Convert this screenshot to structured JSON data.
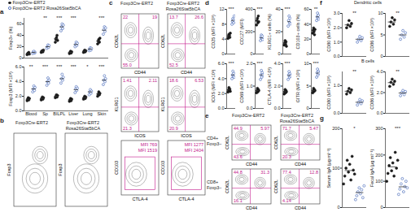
{
  "groups": [
    {
      "name": "Foxp3Cre-ERT2",
      "color": "#1a1a1a",
      "marker": "filled circle"
    },
    {
      "name": "Foxp3Cre-ERT2 Rosa26Stat5bCA",
      "color": "#3b5fb5",
      "marker": "open circle"
    }
  ],
  "chart_data": [
    {
      "panel": "a",
      "type": "scatter",
      "y_label": "Foxp3+ (%)",
      "tick_labels": "y",
      "categories": [
        "Blood",
        "Sp",
        "BILPL",
        "Liver",
        "Lung",
        "Skin"
      ],
      "ylim": [
        0,
        70
      ],
      "yticks": [
        0,
        20,
        40,
        60
      ],
      "series": [
        {
          "values": [
            [
              6,
              8,
              9,
              10,
              7
            ],
            [
              10,
              12,
              13,
              11,
              14
            ],
            [
              28,
              33,
              36,
              40,
              31
            ],
            [
              8,
              10,
              12,
              9,
              11
            ],
            [
              10,
              12,
              14,
              11,
              13
            ],
            [
              25,
              30,
              33,
              28,
              35
            ]
          ],
          "means": [
            8,
            12,
            34,
            10,
            12,
            30
          ]
        },
        {
          "values": [
            [
              8,
              11,
              12,
              9,
              10
            ],
            [
              17,
              20,
              23,
              19,
              22
            ],
            [
              48,
              55,
              60,
              52,
              58
            ],
            [
              20,
              24,
              28,
              22,
              26
            ],
            [
              13,
              16,
              18,
              14,
              17
            ],
            [
              42,
              50,
              55,
              47,
              53
            ]
          ],
          "means": [
            10,
            20,
            55,
            24,
            16,
            49
          ]
        }
      ],
      "significance": [
        null,
        "**",
        "***",
        "***",
        null,
        "***"
      ]
    },
    {
      "panel": "a",
      "type": "scatter",
      "y_label": "Foxp3 (MFI ×10³)",
      "categories": [
        "Blood",
        "Sp",
        "BILPL",
        "Liver",
        "Lung",
        "Skin"
      ],
      "ylim": [
        0,
        6
      ],
      "yticks": [
        0,
        2,
        4,
        6
      ],
      "series": [
        {
          "values": [
            [
              1.4,
              1.6,
              1.8,
              1.5,
              1.7
            ],
            [
              1.5,
              1.7,
              1.9,
              1.6,
              1.8
            ],
            [
              1.8,
              2.0,
              2.2,
              1.9,
              2.1
            ],
            [
              1.3,
              1.5,
              1.7,
              1.4,
              1.6
            ],
            [
              1.6,
              1.8,
              2.0,
              1.7,
              1.9
            ],
            [
              2.0,
              2.3,
              2.6,
              2.2,
              2.4
            ]
          ],
          "means": [
            1.6,
            1.7,
            2.0,
            1.5,
            1.8,
            2.3
          ]
        },
        {
          "values": [
            [
              2.6,
              3.0,
              3.4,
              2.8,
              3.2
            ],
            [
              3.5,
              4.0,
              4.5,
              3.8,
              4.2
            ],
            [
              3.8,
              4.4,
              5.0,
              4.2,
              4.6
            ],
            [
              2.5,
              3.0,
              3.3,
              2.8,
              3.1
            ],
            [
              2.2,
              2.6,
              2.9,
              2.4,
              2.7
            ],
            [
              3.6,
              4.2,
              4.8,
              4.0,
              4.4
            ]
          ],
          "means": [
            3.0,
            4.0,
            4.4,
            2.9,
            2.6,
            4.2
          ]
        }
      ],
      "significance": [
        "**",
        "***",
        "***",
        "***",
        "*",
        "***"
      ]
    },
    {
      "panel": "b",
      "type": "flow",
      "rows": [
        {
          "y_label": "Foxp3",
          "gates": [
            [],
            []
          ]
        }
      ]
    },
    {
      "panel": "c",
      "type": "flow",
      "rows": [
        {
          "x_label": "CD44",
          "y_label": "CD62L",
          "gates": [
            [
              "22",
              "19",
              "55.0"
            ],
            [
              "13.7",
              "26.6",
              "52.5"
            ]
          ]
        },
        {
          "x_label": "ICOS",
          "y_label": "KLRG1",
          "gates": [
            [
              "1.41",
              "2.11",
              "21.3"
            ],
            [
              "18.6",
              "6.53",
              "20.9"
            ]
          ]
        },
        {
          "x_label": "CTLA-4",
          "y_label": "CD103",
          "gates": [
            [
              "MFI 769",
              "MFI 1519"
            ],
            [
              "MFI 1277",
              "MFI 2404"
            ]
          ]
        }
      ]
    },
    {
      "panel": "d",
      "type": "scatter",
      "y_label": "CD25 (MFI ×10³)",
      "ylim": [
        0,
        12
      ],
      "yticks": [
        0,
        4,
        8,
        12
      ],
      "series": [
        {
          "values": [
            [
              4.2,
              4.8,
              5.3,
              5.0,
              4.5,
              5.6
            ]
          ],
          "means": [
            4.9
          ]
        },
        {
          "values": [
            [
              8.0,
              8.8,
              9.5,
              9.1,
              8.4,
              10.2
            ]
          ],
          "means": [
            9.0
          ]
        }
      ],
      "significance": [
        "***"
      ]
    },
    {
      "panel": "d",
      "type": "scatter",
      "y_label": "CD127 (MFI)",
      "ylim": [
        0,
        400
      ],
      "yticks": [
        0,
        200,
        400
      ],
      "series": [
        {
          "values": [
            [
              260,
              300,
              320,
              280,
              340,
              290
            ]
          ],
          "means": [
            298
          ]
        },
        {
          "values": [
            [
              120,
              150,
              170,
              140,
              160,
              130
            ]
          ],
          "means": [
            145
          ]
        }
      ],
      "significance": [
        "***"
      ]
    },
    {
      "panel": "d",
      "type": "scatter",
      "y_label": "KLRG1+ cells (%)",
      "ylim": [
        0,
        40
      ],
      "yticks": [
        0,
        20,
        40
      ],
      "series": [
        {
          "values": [
            [
              8,
              10,
              12,
              9,
              11,
              7
            ]
          ],
          "means": [
            9.5
          ]
        },
        {
          "values": [
            [
              25,
              30,
              34,
              28,
              32,
              27
            ]
          ],
          "means": [
            29
          ]
        }
      ],
      "significance": [
        "***"
      ]
    },
    {
      "panel": "d",
      "type": "scatter",
      "y_label": "CD103+ cells (%)",
      "ylim": [
        0,
        60
      ],
      "yticks": [
        0,
        20,
        40,
        60
      ],
      "series": [
        {
          "values": [
            [
              28,
              32,
              35,
              30,
              26,
              33
            ]
          ],
          "means": [
            31
          ]
        },
        {
          "values": [
            [
              45,
              50,
              55,
              48,
              52,
              47
            ]
          ],
          "means": [
            50
          ]
        }
      ],
      "significance": [
        "**"
      ]
    },
    {
      "panel": "d",
      "type": "scatter",
      "y_label": "ICOS (MFI ×10³)",
      "ylim": [
        0,
        6
      ],
      "yticks": [
        0,
        2,
        4,
        6
      ],
      "series": [
        {
          "values": [
            [
              2.2,
              2.5,
              2.8,
              2.4,
              2.6,
              2.3
            ]
          ],
          "means": [
            2.5
          ]
        },
        {
          "values": [
            [
              4.0,
              4.5,
              5.0,
              4.3,
              4.7,
              4.2
            ]
          ],
          "means": [
            4.5
          ]
        }
      ],
      "significance": [
        "***"
      ]
    },
    {
      "panel": "d",
      "type": "scatter",
      "y_label": "CD69 (MFI ×10³)",
      "ylim": [
        0,
        2
      ],
      "yticks": [
        0,
        1,
        2
      ],
      "series": [
        {
          "values": [
            [
              0.7,
              0.8,
              0.9,
              0.75,
              0.85,
              0.8
            ]
          ],
          "means": [
            0.8
          ]
        },
        {
          "values": [
            [
              1.3,
              1.5,
              1.7,
              1.4,
              1.6,
              1.5
            ]
          ],
          "means": [
            1.5
          ]
        }
      ],
      "significance": [
        "***"
      ]
    },
    {
      "panel": "d",
      "type": "scatter",
      "y_label": "CTLA-4 (MFI ×10³)",
      "ylim": [
        0,
        4
      ],
      "yticks": [
        0,
        2,
        4
      ],
      "series": [
        {
          "values": [
            [
              1.3,
              1.5,
              1.7,
              1.4,
              1.6,
              1.5
            ]
          ],
          "means": [
            1.5
          ]
        },
        {
          "values": [
            [
              2.6,
              3.0,
              3.3,
              2.8,
              3.1,
              2.9
            ]
          ],
          "means": [
            2.95
          ]
        }
      ],
      "significance": [
        "***"
      ]
    },
    {
      "panel": "d",
      "type": "scatter",
      "y_label": "GITR (MFI ×10³)",
      "ylim": [
        0,
        10
      ],
      "yticks": [
        0,
        5,
        10
      ],
      "series": [
        {
          "values": [
            [
              3.5,
              4.0,
              4.5,
              3.8,
              4.2,
              4.0
            ]
          ],
          "means": [
            4.0
          ]
        },
        {
          "values": [
            [
              7.0,
              8.0,
              8.8,
              7.5,
              8.3,
              7.9
            ]
          ],
          "means": [
            7.9
          ]
        }
      ],
      "significance": [
        "***"
      ]
    },
    {
      "panel": "e",
      "type": "flow",
      "rows": [
        {
          "title": "CD4+ Foxp3−",
          "x_label": "CD44",
          "y_label": "CD62L",
          "gates": [
            [
              "44.9",
              "5.97",
              "43.6"
            ],
            [
              "71.7",
              "5.47",
              "20.3"
            ]
          ]
        },
        {
          "title": "CD8+ Foxp3−",
          "x_label": "CD44",
          "y_label": "CD62L",
          "gates": [
            [
              "44.8",
              "31.3",
              "16.1"
            ],
            [
              "77.4",
              "12.8",
              "4.14"
            ]
          ]
        }
      ]
    },
    {
      "panel": "f",
      "type": "scatter",
      "title": "Dendritic cells",
      "y_label": "CD80 (MFI ×10³)",
      "ylim": [
        0,
        3
      ],
      "yticks": [
        0,
        1,
        2,
        3
      ],
      "series": [
        {
          "values": [
            [
              2.0,
              2.2,
              2.5,
              2.1,
              2.3
            ]
          ],
          "means": [
            2.2
          ]
        },
        {
          "values": [
            [
              1.0,
              1.2,
              1.4,
              1.1,
              1.3
            ]
          ],
          "means": [
            1.2
          ]
        }
      ],
      "significance": [
        "**"
      ]
    },
    {
      "panel": "f",
      "type": "scatter",
      "y_label": "CD86 (MFI ×10³)",
      "ylim": [
        0,
        10
      ],
      "yticks": [
        0,
        5,
        10
      ],
      "series": [
        {
          "values": [
            [
              7,
              8,
              9,
              7.5,
              8.5
            ]
          ],
          "means": [
            8
          ]
        },
        {
          "values": [
            [
              4,
              5,
              6,
              4.5,
              5.5
            ]
          ],
          "means": [
            5
          ]
        }
      ],
      "significance": [
        "**"
      ]
    },
    {
      "panel": "f",
      "type": "scatter",
      "title": "B cells",
      "y_label": "CD80 (MFI ×10³)",
      "ylim": [
        0,
        1.5
      ],
      "yticks": [
        0,
        1
      ],
      "series": [
        {
          "values": [
            [
              0.7,
              0.8,
              0.9,
              0.75,
              0.85
            ]
          ],
          "means": [
            0.8
          ]
        },
        {
          "values": [
            [
              0.3,
              0.4,
              0.5,
              0.35,
              0.45
            ]
          ],
          "means": [
            0.4
          ]
        }
      ],
      "significance": [
        "**"
      ]
    },
    {
      "panel": "f",
      "type": "scatter",
      "y_label": "CD86 (MFI ×10³)",
      "ylim": [
        0,
        4
      ],
      "yticks": [
        0,
        2,
        4
      ],
      "series": [
        {
          "values": [
            [
              2.6,
              3.0,
              3.3,
              2.8,
              3.1
            ]
          ],
          "means": [
            2.96
          ]
        },
        {
          "values": [
            [
              1.7,
              2.0,
              2.2,
              1.8,
              2.1
            ]
          ],
          "means": [
            1.96
          ]
        }
      ],
      "significance": [
        "**"
      ]
    },
    {
      "panel": "g",
      "type": "scatter",
      "y_label": "Serum IgA (µg ml⁻¹)",
      "ylim": [
        0,
        200
      ],
      "yticks": [
        0,
        100,
        200
      ],
      "series": [
        {
          "values": [
            [
              60,
              80,
              100,
              120,
              90,
              110,
              70,
              130,
              95,
              85
            ]
          ],
          "means": [
            94
          ]
        },
        {
          "values": [
            [
              20,
              30,
              40,
              50,
              35,
              45,
              25,
              55
            ]
          ],
          "means": [
            38
          ]
        }
      ],
      "significance": [
        "*"
      ]
    },
    {
      "panel": "g",
      "type": "scatter",
      "y_label": "Fecal IgA (µg ml⁻¹)",
      "ylim": [
        0,
        300
      ],
      "yticks": [
        0,
        100,
        200,
        300
      ],
      "series": [
        {
          "values": [
            [
              100,
              130,
              160,
              190,
              140,
              170,
              120,
              210,
              150,
              180
            ]
          ],
          "means": [
            155
          ]
        },
        {
          "values": [
            [
              50,
              70,
              90,
              110,
              60,
              80,
              100,
              75
            ]
          ],
          "means": [
            79
          ]
        }
      ],
      "significance": [
        "***"
      ]
    }
  ]
}
